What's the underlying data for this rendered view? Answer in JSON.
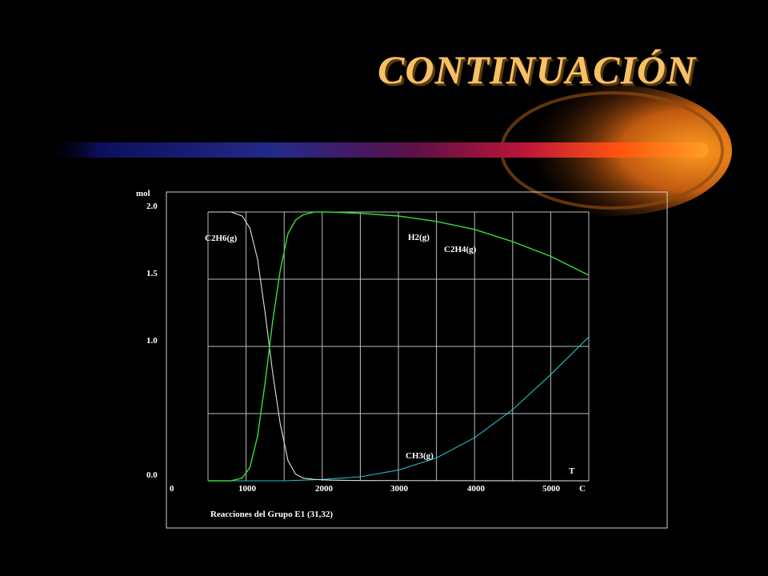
{
  "slide": {
    "title": "CONTINUACIÓN",
    "colors": {
      "background": "#000000",
      "title": "#f6c066",
      "accent_beam": "#ff8c00"
    }
  },
  "chart_data": {
    "type": "line",
    "title": "",
    "xlabel": "T",
    "x_unit": "C",
    "ylabel": "mol",
    "caption": "Reacciones del Grupo E1 (31,32)",
    "xlim": [
      0,
      5000
    ],
    "ylim": [
      0,
      2
    ],
    "x_ticks": [
      {
        "value": 0,
        "label": "0"
      },
      {
        "value": 1000,
        "label": "1000"
      },
      {
        "value": 2000,
        "label": "2000"
      },
      {
        "value": 3000,
        "label": "3000"
      },
      {
        "value": 4000,
        "label": "4000"
      },
      {
        "value": 5000,
        "label": "5000"
      }
    ],
    "y_ticks": [
      {
        "value": 0,
        "label": "0.0"
      },
      {
        "value": 1,
        "label": "1.0"
      },
      {
        "value": 1.5,
        "label": "1.5"
      },
      {
        "value": 2,
        "label": "2.0"
      }
    ],
    "grid": true,
    "series": [
      {
        "name": "C2H6(g)",
        "color": "#e0e0e0",
        "x": [
          0,
          300,
          450,
          550,
          650,
          750,
          850,
          950,
          1050,
          1150,
          1250,
          1400,
          1600,
          2000,
          5000
        ],
        "y": [
          2.0,
          2.0,
          1.97,
          1.88,
          1.65,
          1.25,
          0.8,
          0.42,
          0.15,
          0.05,
          0.02,
          0.01,
          0.005,
          0.002,
          0.0
        ]
      },
      {
        "name": "H2(g)",
        "color": "#33dd33",
        "x": [
          0,
          300,
          450,
          550,
          650,
          750,
          850,
          950,
          1050,
          1150,
          1250,
          1400,
          1600,
          2000,
          2500,
          3000,
          3500,
          4000,
          4500,
          5000
        ],
        "y": [
          0.0,
          0.0,
          0.02,
          0.1,
          0.33,
          0.73,
          1.19,
          1.57,
          1.84,
          1.94,
          1.98,
          2.0,
          2.0,
          1.99,
          1.97,
          1.93,
          1.87,
          1.78,
          1.67,
          1.53
        ]
      },
      {
        "name": "C2H4(g)",
        "color": "#2233cc",
        "x": [
          0,
          300,
          450,
          550,
          650,
          750,
          850,
          950,
          1050,
          1150,
          1250,
          1400,
          1600,
          2000,
          2500,
          3000,
          3500,
          4000,
          4500,
          5000
        ],
        "y": [
          0.0,
          0.0,
          0.02,
          0.1,
          0.33,
          0.73,
          1.19,
          1.57,
          1.84,
          1.94,
          1.98,
          2.0,
          2.0,
          1.99,
          1.97,
          1.93,
          1.87,
          1.78,
          1.67,
          1.53
        ]
      },
      {
        "name": "CH3(g)",
        "color": "#20c0c0",
        "x": [
          0,
          1000,
          1500,
          2000,
          2500,
          3000,
          3500,
          4000,
          4500,
          5000
        ],
        "y": [
          0.0,
          0.0,
          0.01,
          0.03,
          0.08,
          0.17,
          0.32,
          0.53,
          0.79,
          1.07
        ]
      }
    ]
  }
}
